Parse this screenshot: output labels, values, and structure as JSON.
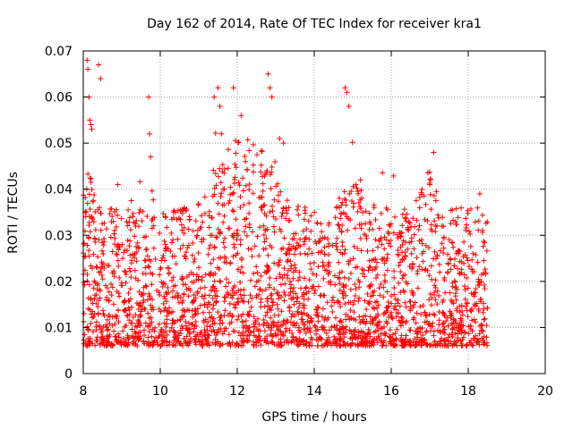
{
  "chart_data": {
    "type": "scatter",
    "title": "Day 162 of 2014, Rate Of TEC Index for receiver kra1",
    "xlabel": "GPS time / hours",
    "ylabel": "ROTI / TECUs",
    "xlim": [
      8,
      20
    ],
    "ylim": [
      0,
      0.07
    ],
    "xticks": [
      "8",
      "10",
      "12",
      "14",
      "16",
      "18",
      "20"
    ],
    "yticks": [
      "0",
      "0.01",
      "0.02",
      "0.03",
      "0.04",
      "0.05",
      "0.06",
      "0.07"
    ],
    "grid": true,
    "legend": "none",
    "marker": "plus",
    "series_color": "#ff0000",
    "series": [
      {
        "name": "ROTI",
        "x": [
          8.05,
          8.1,
          8.12,
          8.15,
          8.17,
          8.2,
          8.22,
          8.4,
          8.45,
          8.9,
          9.7,
          9.72,
          9.75,
          11.4,
          11.5,
          11.55,
          11.9,
          12.1,
          12.8,
          12.85,
          12.9,
          13.1,
          13.2,
          14.8,
          14.85,
          14.9,
          15.2,
          17.0,
          17.1,
          18.3
        ],
        "y": [
          0.035,
          0.068,
          0.066,
          0.06,
          0.055,
          0.054,
          0.053,
          0.067,
          0.064,
          0.041,
          0.06,
          0.052,
          0.047,
          0.06,
          0.062,
          0.058,
          0.062,
          0.056,
          0.065,
          0.062,
          0.06,
          0.051,
          0.05,
          0.062,
          0.061,
          0.058,
          0.042,
          0.041,
          0.048,
          0.039
        ]
      }
    ]
  }
}
